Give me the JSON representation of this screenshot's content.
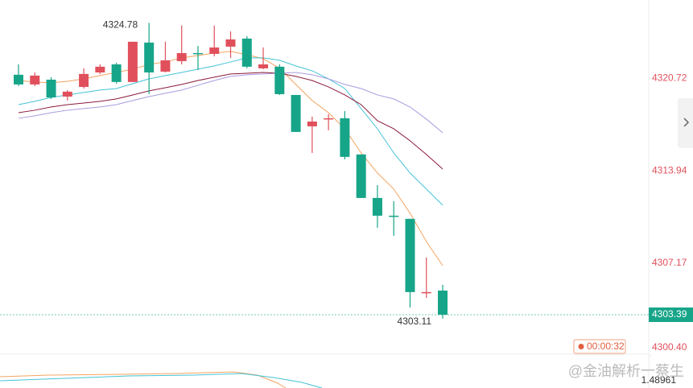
{
  "chart_data": {
    "type": "candlestick",
    "categories": [
      null,
      null,
      null,
      null,
      null,
      null,
      null,
      null,
      null,
      null,
      null,
      null,
      null,
      null,
      null,
      null,
      null,
      null,
      null,
      null,
      null,
      null,
      null,
      null,
      null,
      null,
      null
    ],
    "open": [
      4320.98,
      4320.27,
      4320.62,
      4319.38,
      4320.09,
      4321.15,
      4321.74,
      4320.45,
      4323.34,
      4321.21,
      4321.98,
      4322.57,
      4322.51,
      4323.04,
      4323.63,
      4321.45,
      4321.57,
      4319.5,
      4317.2,
      4317.73,
      4317.79,
      4315.14,
      4311.95,
      4310.65,
      4310.42,
      4304.99,
      4305.16
    ],
    "high": [
      4321.74,
      4321.15,
      4320.8,
      4319.86,
      4321.45,
      4321.74,
      4321.86,
      4323.4,
      4324.78,
      4323.4,
      4324.6,
      4323.1,
      4324.58,
      4324.16,
      4323.81,
      4322.98,
      4321.74,
      4319.5,
      4317.91,
      4318.09,
      4318.32,
      4315.14,
      4312.89,
      4311.71,
      4310.42,
      4307.58,
      4305.58
    ],
    "low": [
      4320.15,
      4320.15,
      4319.21,
      4319.09,
      4319.97,
      4321.04,
      4320.33,
      4320.45,
      4319.56,
      4321.15,
      4321.74,
      4321.33,
      4322.33,
      4322.22,
      4321.45,
      4321.39,
      4319.5,
      4316.79,
      4315.25,
      4316.91,
      4314.78,
      4311.95,
      4309.77,
      4309.18,
      4303.92,
      4304.63,
      4303.11
    ],
    "close": [
      4320.27,
      4320.92,
      4319.32,
      4319.74,
      4321.04,
      4321.57,
      4320.45,
      4323.4,
      4321.15,
      4322.04,
      4322.57,
      4322.51,
      4322.98,
      4323.57,
      4321.57,
      4321.74,
      4319.56,
      4316.79,
      4317.55,
      4317.79,
      4314.96,
      4311.95,
      4310.65,
      4310.59,
      4305.05,
      4305.05,
      4303.39
    ],
    "up_color": "#e0505c",
    "down_color": "#17a589",
    "series": [
      {
        "color": "#f4a460",
        "values": [
          4320.56,
          4320.45,
          4320.39,
          4320.5,
          4320.68,
          4320.92,
          4321.15,
          4321.39,
          4321.74,
          4321.92,
          4322.22,
          4322.39,
          4322.57,
          4322.69,
          4322.45,
          4322.16,
          4321.45,
          4320.27,
          4319.09,
          4318.2,
          4317.02,
          4315.25,
          4313.78,
          4312.6,
          4310.83,
          4308.76,
          4306.99
        ]
      },
      {
        "color": "#45c3d8",
        "values": [
          4318.79,
          4319.03,
          4319.32,
          4319.5,
          4319.68,
          4319.86,
          4319.97,
          4320.33,
          4320.68,
          4320.92,
          4321.15,
          4321.39,
          4321.63,
          4321.92,
          4322.22,
          4322.22,
          4322.04,
          4321.63,
          4321.27,
          4320.68,
          4319.97,
          4318.5,
          4317.02,
          4315.25,
          4313.78,
          4312.6,
          4311.42
        ]
      },
      {
        "color": "#8b1a3a",
        "values": [
          4318.2,
          4318.38,
          4318.62,
          4318.79,
          4318.91,
          4319.03,
          4319.21,
          4319.5,
          4319.8,
          4320.03,
          4320.27,
          4320.56,
          4320.8,
          4321.04,
          4321.09,
          4321.15,
          4321.09,
          4320.86,
          4320.56,
          4320.09,
          4319.5,
          4318.79,
          4317.61,
          4317.02,
          4316.14,
          4315.14,
          4314.07
        ]
      },
      {
        "color": "#a99be0",
        "values": [
          4317.79,
          4317.97,
          4318.2,
          4318.38,
          4318.5,
          4318.62,
          4318.79,
          4319.09,
          4319.38,
          4319.62,
          4319.86,
          4320.21,
          4320.56,
          4320.86,
          4320.98,
          4321.04,
          4321.09,
          4321.15,
          4320.98,
          4320.68,
          4320.27,
          4319.97,
          4319.5,
          4319.21,
          4318.62,
          4317.73,
          4316.73
        ]
      }
    ],
    "ylim": [
      4300.38,
      4326.46
    ],
    "yticks": [
      {
        "value": 4300.4,
        "label": "4300.40"
      },
      4307.17,
      4313.94,
      4320.72
    ],
    "last_price": 4303.39,
    "countdown": "00:00:32",
    "indicator_tick": 1.48961,
    "watermark": "@金油解析一蔡生"
  }
}
